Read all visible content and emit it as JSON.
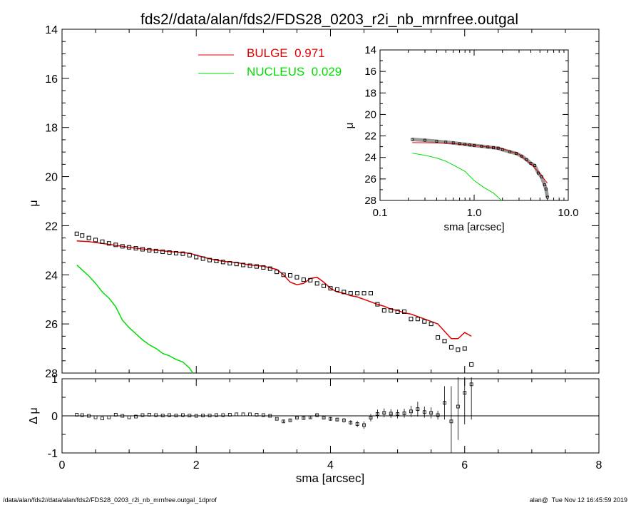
{
  "title": "fds2//data/alan/fds2/FDS28_0203_r2i_nb_mrnfree.outgal",
  "footer_left": "/data/alan/fds2//data/alan/fds2/FDS28_0203_r2i_nb_mrnfree.outgal_1dprof",
  "footer_right": "alan@  Tue Nov 12 16:45:59 2019",
  "colors": {
    "bulge": "#e00000",
    "nucleus": "#00dd00",
    "data": "#000000"
  },
  "chart_data": [
    {
      "name": "main-profile",
      "type": "line",
      "xlabel": "sma [arcsec]",
      "ylabel": "μ",
      "xlim": [
        0,
        8
      ],
      "ylim": [
        28,
        14
      ],
      "xticks": [
        0,
        2,
        4,
        6,
        8
      ],
      "yticks": [
        14,
        16,
        18,
        20,
        22,
        24,
        26,
        28
      ],
      "legend": [
        {
          "label": "BULGE  0.971",
          "color": "#e00000"
        },
        {
          "label": "NUCLEUS  0.029",
          "color": "#00dd00"
        }
      ],
      "series": [
        {
          "name": "BULGE",
          "color": "#e00000",
          "x": [
            0.22,
            0.4,
            0.6,
            0.8,
            1.0,
            1.2,
            1.4,
            1.6,
            1.8,
            1.9,
            2.0,
            2.2,
            2.4,
            2.6,
            2.8,
            3.0,
            3.2,
            3.3,
            3.4,
            3.5,
            3.6,
            3.7,
            3.8,
            3.9,
            4.0,
            4.1,
            4.2,
            4.3,
            4.4,
            4.5,
            4.6,
            4.7,
            4.8,
            4.9,
            5.0,
            5.1,
            5.2,
            5.3,
            5.4,
            5.5,
            5.6,
            5.7,
            5.8,
            5.9,
            6.0,
            6.1
          ],
          "y": [
            22.62,
            22.65,
            22.72,
            22.8,
            22.88,
            22.95,
            23.0,
            23.05,
            23.1,
            23.12,
            23.2,
            23.35,
            23.45,
            23.5,
            23.6,
            23.65,
            23.78,
            24.0,
            24.3,
            24.4,
            24.35,
            24.15,
            24.1,
            24.3,
            24.55,
            24.7,
            24.75,
            24.85,
            24.9,
            25.0,
            25.1,
            25.2,
            25.28,
            25.4,
            25.45,
            25.55,
            25.6,
            25.7,
            25.8,
            25.9,
            26.0,
            26.3,
            26.6,
            26.6,
            26.35,
            26.5
          ]
        },
        {
          "name": "NUCLEUS",
          "color": "#00dd00",
          "x": [
            0.22,
            0.3,
            0.4,
            0.5,
            0.6,
            0.7,
            0.8,
            0.9,
            1.0,
            1.1,
            1.2,
            1.3,
            1.4,
            1.5,
            1.6,
            1.7,
            1.8,
            1.9,
            1.95
          ],
          "y": [
            23.6,
            23.8,
            24.05,
            24.35,
            24.7,
            24.95,
            25.3,
            25.85,
            26.15,
            26.4,
            26.65,
            26.85,
            27.0,
            27.2,
            27.3,
            27.45,
            27.55,
            27.8,
            28.0
          ]
        },
        {
          "name": "data",
          "color": "#000000",
          "x": [
            0.22,
            0.3,
            0.4,
            0.5,
            0.6,
            0.7,
            0.8,
            0.9,
            1.0,
            1.1,
            1.2,
            1.3,
            1.4,
            1.5,
            1.6,
            1.7,
            1.8,
            1.9,
            2.0,
            2.1,
            2.2,
            2.3,
            2.4,
            2.5,
            2.6,
            2.7,
            2.8,
            2.9,
            3.0,
            3.1,
            3.2,
            3.3,
            3.4,
            3.5,
            3.6,
            3.7,
            3.8,
            3.9,
            4.0,
            4.1,
            4.2,
            4.3,
            4.4,
            4.5,
            4.6,
            4.7,
            4.8,
            4.9,
            5.0,
            5.1,
            5.2,
            5.3,
            5.4,
            5.5,
            5.6,
            5.7,
            5.8,
            5.9,
            6.0,
            6.1
          ],
          "y": [
            22.33,
            22.4,
            22.5,
            22.58,
            22.65,
            22.72,
            22.78,
            22.84,
            22.88,
            22.92,
            22.96,
            23.0,
            23.03,
            23.06,
            23.09,
            23.12,
            23.14,
            23.2,
            23.28,
            23.34,
            23.4,
            23.44,
            23.48,
            23.53,
            23.56,
            23.6,
            23.63,
            23.66,
            23.7,
            23.75,
            23.88,
            24.0,
            24.02,
            24.1,
            24.2,
            24.22,
            24.35,
            24.45,
            24.55,
            24.6,
            24.7,
            24.75,
            24.75,
            24.75,
            24.75,
            25.2,
            25.45,
            25.45,
            25.5,
            25.5,
            25.8,
            25.8,
            25.9,
            26.0,
            26.55,
            26.7,
            26.95,
            27.05,
            27.0,
            27.65
          ]
        }
      ]
    },
    {
      "name": "residual",
      "type": "scatter",
      "xlabel": "sma [arcsec]",
      "ylabel": "Δ μ",
      "xlim": [
        0,
        8
      ],
      "ylim": [
        -1,
        1
      ],
      "xticks": [
        0,
        2,
        4,
        6,
        8
      ],
      "yticks": [
        -1,
        0,
        1
      ],
      "series": [
        {
          "name": "residual",
          "x": [
            0.22,
            0.3,
            0.4,
            0.5,
            0.6,
            0.7,
            0.8,
            0.9,
            1.0,
            1.1,
            1.2,
            1.3,
            1.4,
            1.5,
            1.6,
            1.7,
            1.8,
            1.9,
            2.0,
            2.1,
            2.2,
            2.3,
            2.4,
            2.5,
            2.6,
            2.7,
            2.8,
            2.9,
            3.0,
            3.1,
            3.2,
            3.3,
            3.4,
            3.5,
            3.6,
            3.7,
            3.8,
            3.9,
            4.0,
            4.1,
            4.2,
            4.3,
            4.4,
            4.5,
            4.6,
            4.7,
            4.8,
            4.9,
            5.0,
            5.1,
            5.2,
            5.3,
            5.4,
            5.5,
            5.6,
            5.7,
            5.8,
            5.9,
            6.0,
            6.1
          ],
          "y": [
            0.03,
            0.02,
            0.0,
            -0.04,
            -0.07,
            -0.04,
            0.03,
            0.0,
            -0.04,
            -0.02,
            0.02,
            0.03,
            0.02,
            0.01,
            0.02,
            0.01,
            0.02,
            0.01,
            0.0,
            0.01,
            0.01,
            0.02,
            0.02,
            0.03,
            0.04,
            0.04,
            0.04,
            0.03,
            0.02,
            0.0,
            -0.08,
            -0.15,
            -0.12,
            -0.05,
            -0.06,
            -0.04,
            0.02,
            -0.05,
            -0.08,
            -0.1,
            -0.12,
            -0.18,
            -0.22,
            -0.25,
            -0.05,
            0.05,
            0.08,
            0.06,
            0.05,
            0.07,
            0.12,
            0.18,
            0.1,
            0.08,
            0.02,
            0.35,
            -0.15,
            0.25,
            0.62,
            0.85
          ],
          "err": [
            0.01,
            0.01,
            0.01,
            0.01,
            0.01,
            0.01,
            0.01,
            0.01,
            0.01,
            0.01,
            0.01,
            0.01,
            0.01,
            0.01,
            0.01,
            0.01,
            0.01,
            0.01,
            0.01,
            0.01,
            0.01,
            0.01,
            0.01,
            0.01,
            0.01,
            0.01,
            0.01,
            0.01,
            0.01,
            0.02,
            0.02,
            0.03,
            0.03,
            0.03,
            0.03,
            0.03,
            0.04,
            0.04,
            0.05,
            0.05,
            0.06,
            0.06,
            0.08,
            0.1,
            0.1,
            0.12,
            0.12,
            0.12,
            0.12,
            0.12,
            0.15,
            0.2,
            0.15,
            0.15,
            0.12,
            0.45,
            0.95,
            0.9,
            0.85,
            0.95
          ]
        }
      ]
    },
    {
      "name": "inset-log-profile",
      "type": "line",
      "xlabel": "sma [arcsec]",
      "ylabel": "μ",
      "xscale": "log",
      "xlim": [
        0.1,
        10.0
      ],
      "ylim": [
        28,
        14
      ],
      "xtick_labels": [
        "0.1",
        "1.0",
        "10.0"
      ],
      "yticks": [
        14,
        16,
        18,
        20,
        22,
        24,
        26,
        28
      ],
      "series": [
        {
          "name": "BULGE",
          "color": "#e00000",
          "x": [
            0.22,
            0.3,
            0.4,
            0.5,
            0.6,
            0.8,
            1.0,
            1.5,
            2.0,
            3.0,
            4.0,
            5.0,
            6.0
          ],
          "y": [
            22.62,
            22.63,
            22.65,
            22.68,
            22.72,
            22.8,
            22.88,
            23.06,
            23.2,
            23.7,
            24.6,
            25.5,
            26.4
          ]
        },
        {
          "name": "NUCLEUS",
          "color": "#00dd00",
          "x": [
            0.22,
            0.3,
            0.4,
            0.5,
            0.6,
            0.8,
            1.0,
            1.3,
            1.6,
            1.95
          ],
          "y": [
            23.6,
            23.8,
            24.05,
            24.35,
            24.7,
            25.3,
            26.15,
            26.85,
            27.3,
            28.0
          ]
        },
        {
          "name": "data",
          "color": "#000000",
          "x": [
            0.22,
            0.3,
            0.4,
            0.5,
            0.6,
            0.7,
            0.8,
            0.9,
            1.0,
            1.2,
            1.4,
            1.6,
            1.8,
            2.0,
            2.4,
            2.8,
            3.2,
            3.6,
            4.0,
            4.4,
            4.8,
            5.2,
            5.6,
            5.8,
            6.0
          ],
          "y": [
            22.33,
            22.4,
            22.5,
            22.58,
            22.65,
            22.72,
            22.78,
            22.84,
            22.88,
            22.96,
            23.03,
            23.09,
            23.14,
            23.28,
            23.48,
            23.63,
            23.88,
            24.2,
            24.55,
            24.75,
            25.45,
            25.8,
            26.55,
            26.95,
            27.7
          ]
        }
      ]
    }
  ]
}
